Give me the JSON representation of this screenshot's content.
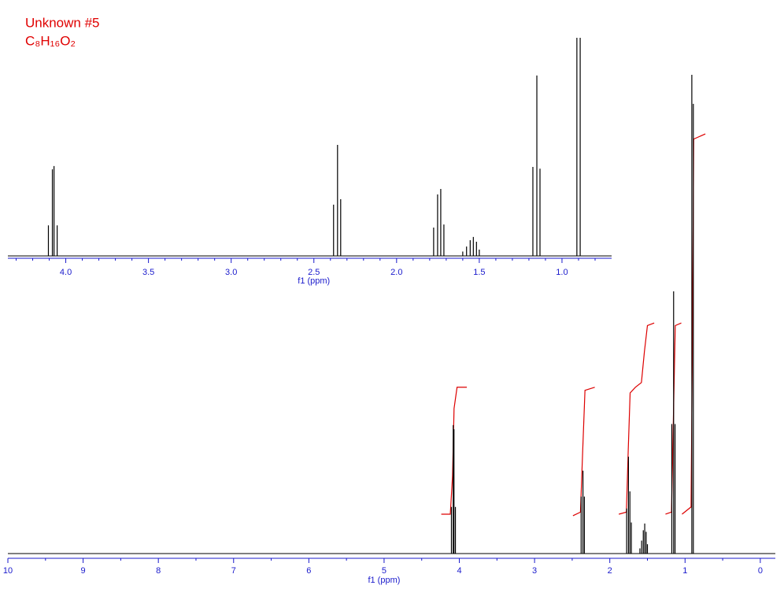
{
  "header": {
    "title": "Unknown #5",
    "formula": "C₈H₁₆O₂"
  },
  "chart_data": [
    {
      "type": "spectrum",
      "xlabel": "f1 (ppm)",
      "xlim": [
        10,
        -0.2
      ],
      "ylim": [
        0,
        100
      ],
      "xticks": [
        10,
        9,
        8,
        7,
        6,
        5,
        4,
        3,
        2,
        1,
        0
      ],
      "xminorticks": [
        9.5,
        8.5,
        7.5,
        6.5,
        5.5,
        4.5,
        3.5,
        2.5,
        1.5,
        0.5
      ],
      "color": "#000000",
      "axis_color": "#1a1acc",
      "x": [
        4.105,
        4.081,
        4.071,
        4.052,
        2.381,
        2.357,
        2.338,
        1.776,
        1.752,
        1.733,
        1.714,
        1.6,
        1.577,
        1.555,
        1.536,
        1.517,
        1.5,
        1.176,
        1.152,
        1.133,
        0.91,
        0.89
      ],
      "values": [
        9,
        24.8,
        24,
        9,
        11,
        16,
        11,
        8.7,
        18.7,
        12,
        6,
        1,
        2.5,
        4.5,
        5.8,
        4.2,
        1.8,
        25,
        50.6,
        25,
        92.4,
        86.8
      ],
      "integral_color": "#dd0000",
      "integrals": [
        {
          "x": [
            4.24,
            4.12,
            4.09,
            4.07,
            4.03,
            3.9
          ],
          "values": [
            7.6,
            7.6,
            15,
            28,
            32.1,
            32.1
          ]
        },
        {
          "x": [
            2.49,
            2.39,
            2.36,
            2.33,
            2.2
          ],
          "values": [
            7.3,
            8,
            20,
            31.5,
            32.1
          ]
        },
        {
          "x": [
            1.88,
            1.78,
            1.755,
            1.73,
            1.66,
            1.58,
            1.54,
            1.5,
            1.41
          ],
          "values": [
            7.6,
            8,
            20,
            31,
            32.1,
            33,
            39,
            44,
            44.5
          ]
        },
        {
          "x": [
            1.26,
            1.18,
            1.155,
            1.13,
            1.05
          ],
          "values": [
            7.6,
            8,
            26,
            44,
            44.5
          ]
        },
        {
          "x": [
            1.04,
            0.92,
            0.9,
            0.885,
            0.73
          ],
          "values": [
            7.6,
            9,
            45,
            80,
            81
          ]
        }
      ]
    },
    {
      "type": "spectrum",
      "xlabel": "f1 (ppm)",
      "xlim": [
        4.35,
        0.7
      ],
      "ylim": [
        0,
        100
      ],
      "xticks": [
        {
          "value": 4,
          "label": "4.0"
        },
        3.5,
        {
          "value": 3,
          "label": "3.0"
        },
        2.5,
        {
          "value": 2,
          "label": "2.0"
        },
        1.5,
        {
          "value": 1,
          "label": "1.0"
        }
      ],
      "xminorticks": [
        4.3,
        4.2,
        4.1,
        3.9,
        3.8,
        3.7,
        3.6,
        3.4,
        3.3,
        3.2,
        3.1,
        2.9,
        2.8,
        2.7,
        2.6,
        2.4,
        2.3,
        2.2,
        2.1,
        1.9,
        1.8,
        1.7,
        1.6,
        1.4,
        1.3,
        1.2,
        1.1,
        0.9,
        0.8
      ],
      "color": "#000000",
      "axis_color": "#1a1acc",
      "x": [
        4.105,
        4.081,
        4.071,
        4.052,
        2.381,
        2.357,
        2.338,
        1.776,
        1.752,
        1.733,
        1.714,
        1.6,
        1.577,
        1.555,
        1.536,
        1.517,
        1.5,
        1.176,
        1.152,
        1.133,
        0.91,
        0.89
      ],
      "values": [
        14,
        39.7,
        41.2,
        14,
        23.5,
        50.9,
        26,
        13,
        28.2,
        30.7,
        14.4,
        2,
        4.3,
        7.2,
        8.7,
        6.5,
        2.9,
        40.8,
        82.7,
        40,
        100,
        100
      ]
    }
  ]
}
